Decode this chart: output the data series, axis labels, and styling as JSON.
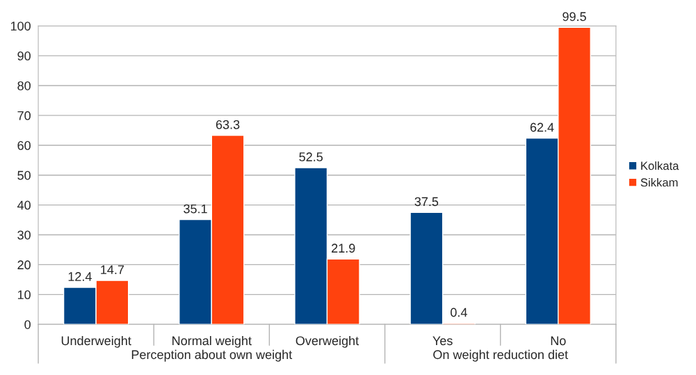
{
  "chart_data": {
    "type": "bar",
    "categories": [
      "Underweight",
      "Normal weight",
      "Overweight",
      "Yes",
      "No"
    ],
    "series": [
      {
        "name": "Kolkata",
        "color": "#004586",
        "values": [
          12.4,
          35.1,
          52.5,
          37.5,
          62.4
        ]
      },
      {
        "name": "Sikkam",
        "color": "#ff420e",
        "values": [
          14.7,
          63.3,
          21.9,
          0.4,
          99.5
        ]
      }
    ],
    "ylim": [
      0,
      100
    ],
    "yticks": [
      0,
      10,
      20,
      30,
      40,
      50,
      60,
      70,
      80,
      90,
      100
    ],
    "grid": "y",
    "legend": "right",
    "data_labels": true,
    "annotations": [
      "Perception about own weight",
      "On weight reduction diet"
    ]
  }
}
